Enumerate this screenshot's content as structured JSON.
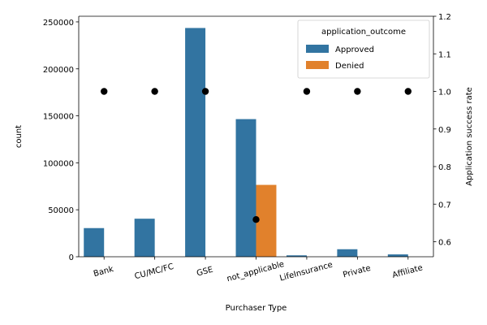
{
  "chart_data": {
    "type": "bar",
    "xlabel": "Purchaser Type",
    "ylabel": "count",
    "y2label": "Application success rate",
    "categories": [
      "Bank",
      "CU/MC/FC",
      "GSE",
      "not_applicable",
      "LifeInsurance",
      "Private",
      "Affiliate"
    ],
    "ylim": [
      0,
      256000
    ],
    "y2lim": [
      0.56,
      1.2
    ],
    "yticks": [
      0,
      50000,
      100000,
      150000,
      200000,
      250000
    ],
    "y2ticks": [
      0.6,
      0.7,
      0.8,
      0.9,
      1.0,
      1.1,
      1.2
    ],
    "y2tick_labels": [
      "0.6",
      "0.7",
      "0.8",
      "0.9",
      "1.0",
      "1.1",
      "1.2"
    ],
    "legend": {
      "title": "application_outcome",
      "placement": "upper right"
    },
    "series": [
      {
        "name": "Approved",
        "color": "#3274a1",
        "values": [
          30500,
          40500,
          243500,
          146500,
          1500,
          8000,
          2500
        ]
      },
      {
        "name": "Denied",
        "color": "#e1812c",
        "values": [
          0,
          0,
          0,
          76500,
          0,
          0,
          0
        ]
      }
    ],
    "secondary_series": {
      "type": "scatter",
      "axis": "right",
      "color": "#000000",
      "values": [
        1.0,
        1.0,
        1.0,
        0.659,
        1.0,
        1.0,
        1.0
      ]
    }
  }
}
